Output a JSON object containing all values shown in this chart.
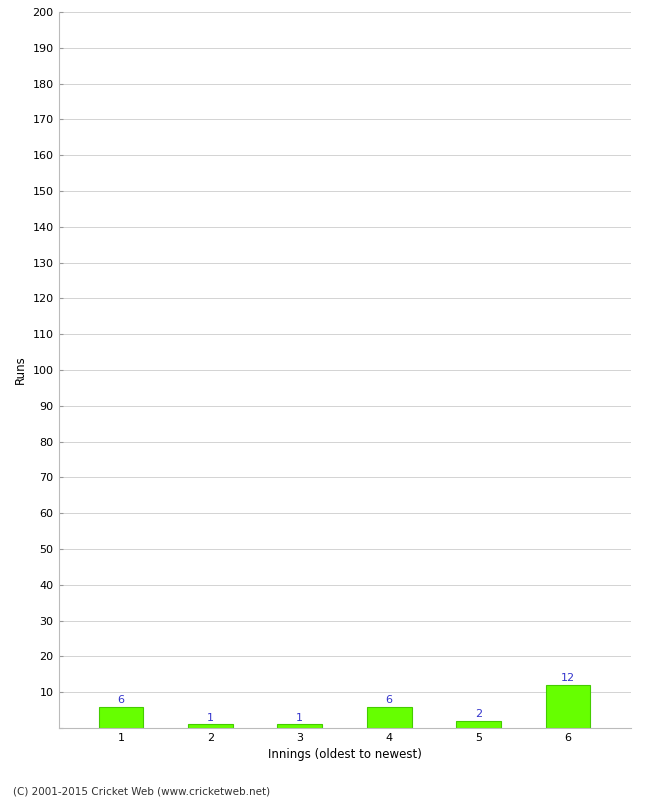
{
  "categories": [
    1,
    2,
    3,
    4,
    5,
    6
  ],
  "values": [
    6,
    1,
    1,
    6,
    2,
    12
  ],
  "bar_color": "#66ff00",
  "bar_edge_color": "#44cc00",
  "xlabel": "Innings (oldest to newest)",
  "ylabel": "Runs",
  "ylim": [
    0,
    200
  ],
  "yticks": [
    0,
    10,
    20,
    30,
    40,
    50,
    60,
    70,
    80,
    90,
    100,
    110,
    120,
    130,
    140,
    150,
    160,
    170,
    180,
    190,
    200
  ],
  "label_color": "#3333cc",
  "label_fontsize": 8,
  "footer": "(C) 2001-2015 Cricket Web (www.cricketweb.net)",
  "background_color": "#ffffff",
  "grid_color": "#cccccc",
  "axis_label_fontsize": 8.5,
  "tick_fontsize": 8,
  "bar_width": 0.5
}
